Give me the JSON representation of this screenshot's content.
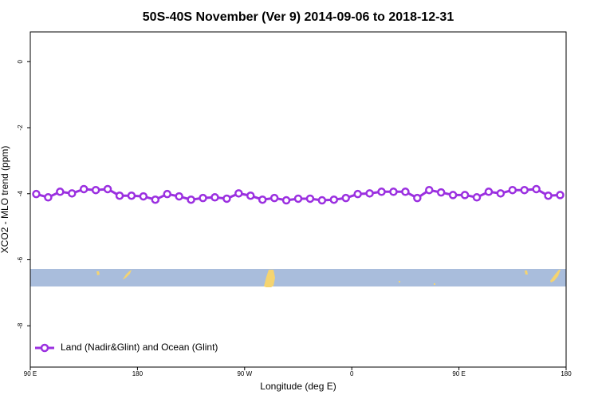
{
  "chart_data": {
    "type": "line",
    "title": "50S-40S November (Ver 9)   2014-09-06 to 2018-12-31",
    "x_label": "Longitude (deg E)",
    "y_label": "XCO2 - MLO trend (ppm)",
    "xlim": [
      90,
      540
    ],
    "xticks": [
      {
        "value": 90,
        "label": "90 E"
      },
      {
        "value": 180,
        "label": "180"
      },
      {
        "value": 270,
        "label": "90 W"
      },
      {
        "value": 360,
        "label": "0"
      },
      {
        "value": 450,
        "label": "90 E"
      },
      {
        "value": 540,
        "label": "180"
      }
    ],
    "ylim": [
      -9.25,
      0.9
    ],
    "yticks": [
      0,
      -2,
      -4,
      -6,
      -8
    ],
    "x": [
      95,
      105,
      115,
      125,
      135,
      145,
      155,
      165,
      175,
      185,
      195,
      205,
      215,
      225,
      235,
      245,
      255,
      265,
      275,
      285,
      295,
      305,
      315,
      325,
      335,
      345,
      355,
      365,
      375,
      385,
      395,
      405,
      415,
      425,
      435,
      445,
      455,
      465,
      475,
      485,
      495,
      505,
      515,
      525,
      535
    ],
    "series": [
      {
        "name": "Land (Nadir&Glint) and Ocean (Glint)",
        "color": "#9b30e0",
        "values": [
          -4.01,
          -4.11,
          -3.94,
          -3.99,
          -3.86,
          -3.89,
          -3.86,
          -4.06,
          -4.06,
          -4.08,
          -4.18,
          -4.01,
          -4.08,
          -4.18,
          -4.13,
          -4.11,
          -4.15,
          -3.99,
          -4.06,
          -4.18,
          -4.13,
          -4.2,
          -4.15,
          -4.15,
          -4.2,
          -4.18,
          -4.13,
          -4.01,
          -3.99,
          -3.94,
          -3.94,
          -3.94,
          -4.13,
          -3.89,
          -3.96,
          -4.04,
          -4.04,
          -4.11,
          -3.94,
          -3.99,
          -3.89,
          -3.89,
          -3.86,
          -4.06,
          -4.04
        ]
      }
    ],
    "legend": "bottom-left"
  }
}
